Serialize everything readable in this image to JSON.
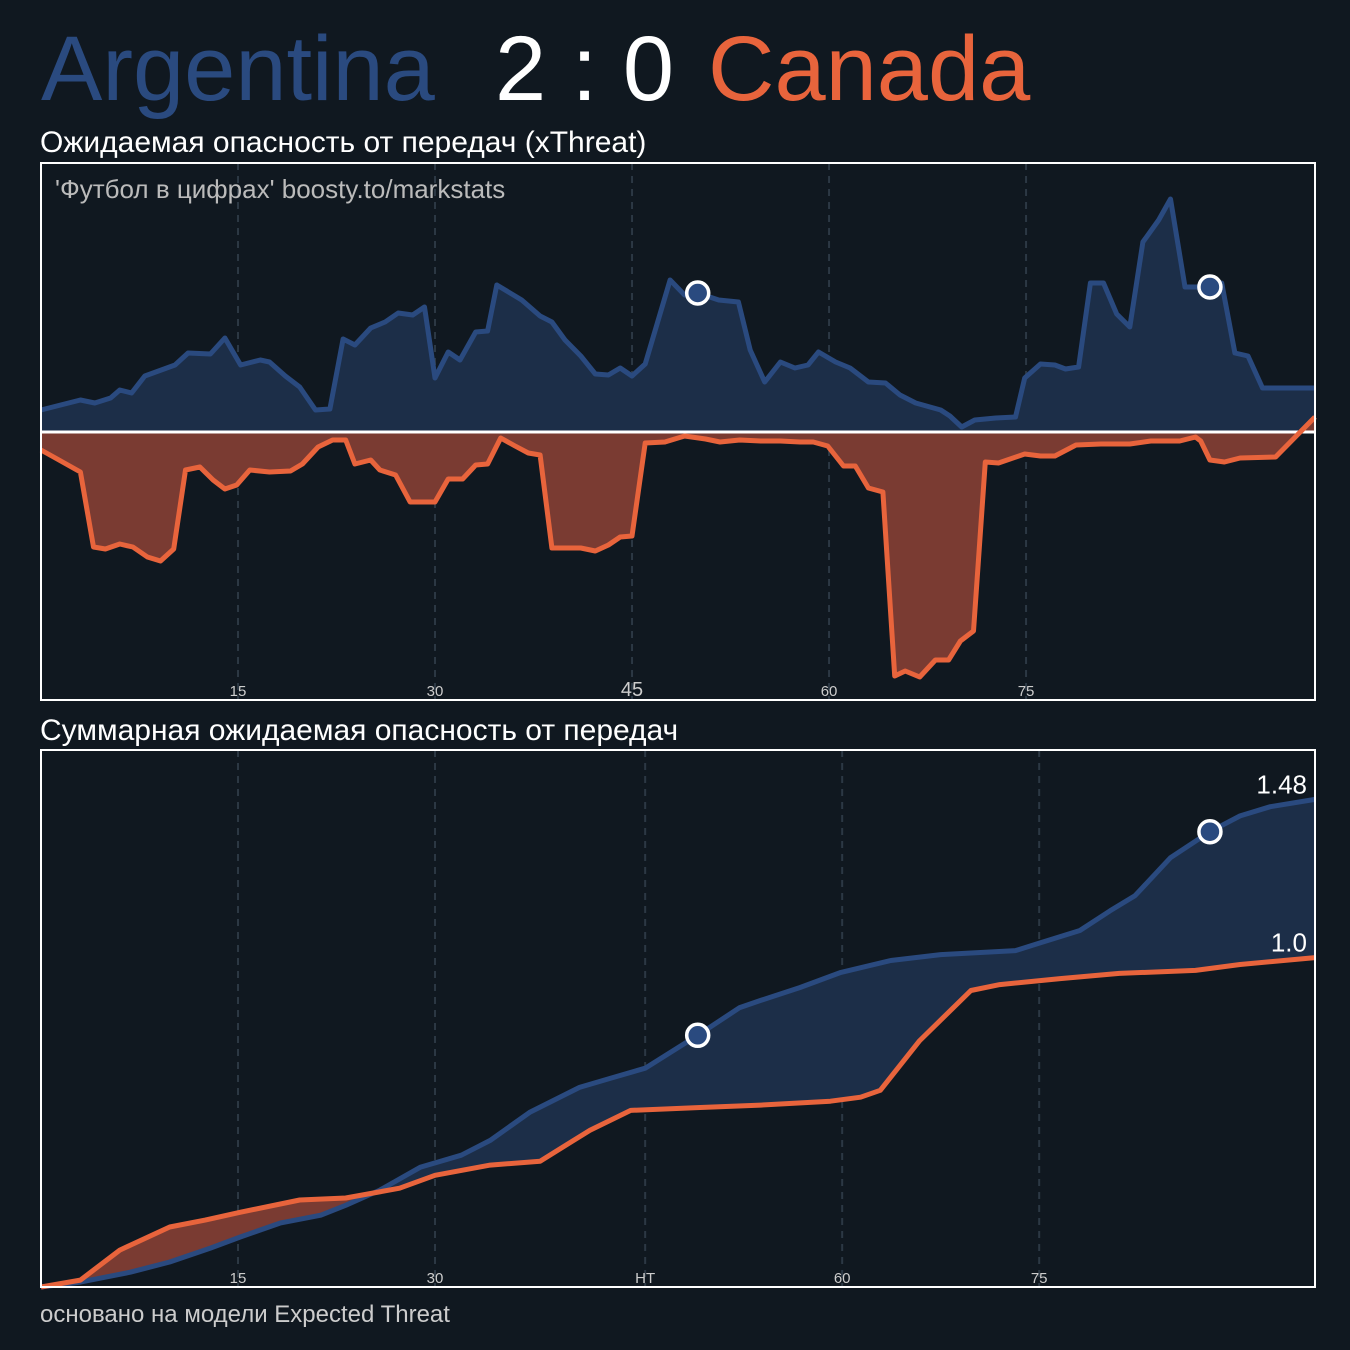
{
  "header": {
    "home": "Argentina",
    "score": "2 : 0",
    "away": "Canada"
  },
  "footer": "основано на модели Expected Threat",
  "chart_data": [
    {
      "type": "area",
      "title": "Ожидаемая опасность от передач (xThreat)",
      "annotation": "'Футбол в цифрах' boosty.to/markstats",
      "xlim": [
        0,
        97
      ],
      "ylim": [
        -0.268,
        0.269
      ],
      "xticks": [
        15,
        30,
        45,
        60,
        75
      ],
      "grid": true,
      "series": [
        {
          "color": "#2a4a7f",
          "fill": "#1c2e48",
          "x": [
            0,
            3.0,
            4.1,
            5.3,
            6.0,
            6.9,
            7.9,
            10.2,
            11.2,
            12.9,
            14.0,
            15.2,
            16.7,
            17.4,
            18.6,
            19.7,
            20.9,
            22.0,
            23.0,
            23.9,
            25.1,
            26.2,
            27.2,
            28.3,
            29.2,
            30.0,
            31.0,
            31.9,
            33.1,
            34.0,
            34.7,
            36.6,
            38.0,
            38.9,
            39.9,
            41.1,
            42.2,
            43.2,
            44.1,
            45.0,
            46.0,
            47.9,
            49.0,
            50.0,
            51.6,
            53.1,
            54.0,
            55.1,
            56.3,
            57.4,
            58.4,
            59.2,
            60.5,
            61.6,
            63.0,
            64.3,
            65.4,
            66.6,
            68.5,
            69.2,
            70.1,
            71.1,
            72.7,
            74.2,
            74.9,
            76.1,
            77.2,
            78.0,
            79.0,
            79.9,
            80.9,
            81.9,
            82.9,
            83.9,
            85.1,
            86.0,
            87.1,
            89.0,
            89.9,
            90.9,
            91.9,
            93.0,
            97.0
          ],
          "values": [
            0.022,
            0.032,
            0.029,
            0.034,
            0.042,
            0.039,
            0.056,
            0.067,
            0.079,
            0.078,
            0.094,
            0.067,
            0.072,
            0.07,
            0.056,
            0.045,
            0.022,
            0.023,
            0.093,
            0.087,
            0.104,
            0.11,
            0.119,
            0.117,
            0.125,
            0.054,
            0.08,
            0.072,
            0.1,
            0.101,
            0.147,
            0.132,
            0.116,
            0.11,
            0.092,
            0.076,
            0.058,
            0.057,
            0.064,
            0.056,
            0.068,
            0.152,
            0.137,
            0.139,
            0.132,
            0.13,
            0.082,
            0.05,
            0.07,
            0.064,
            0.067,
            0.08,
            0.07,
            0.064,
            0.05,
            0.049,
            0.037,
            0.029,
            0.022,
            0.016,
            0.005,
            0.012,
            0.014,
            0.015,
            0.054,
            0.068,
            0.067,
            0.063,
            0.065,
            0.149,
            0.149,
            0.118,
            0.105,
            0.19,
            0.212,
            0.233,
            0.145,
            0.145,
            0.149,
            0.079,
            0.076,
            0.044,
            0.044
          ],
          "goals_x": [
            50,
            89
          ]
        },
        {
          "color": "#e8643c",
          "fill": "#7a3b32",
          "x": [
            0,
            1.1,
            3.0,
            4.0,
            4.9,
            6.0,
            7.0,
            8.1,
            9.1,
            10.1,
            11.0,
            12.1,
            13.1,
            14.0,
            14.9,
            15.9,
            17.4,
            19.0,
            19.9,
            21.1,
            22.2,
            23.2,
            23.9,
            25.1,
            25.8,
            27.0,
            28.1,
            30.0,
            31.0,
            32.1,
            33.1,
            34.0,
            35.0,
            36.1,
            37.1,
            38.0,
            38.9,
            41.1,
            42.2,
            43.2,
            44.1,
            45.0,
            46.0,
            47.5,
            49.0,
            50.6,
            51.7,
            53.2,
            54.8,
            56.3,
            57.8,
            58.8,
            59.9,
            61.1,
            62.0,
            63.0,
            64.1,
            65.0,
            65.8,
            66.9,
            68.1,
            69.1,
            70.0,
            71.0,
            71.9,
            72.9,
            74.9,
            76.1,
            77.2,
            78.8,
            80.7,
            82.9,
            84.5,
            86.7,
            87.9,
            88.3,
            89.0,
            90.1,
            91.3,
            94.0,
            97.0
          ],
          "values": [
            -0.018,
            -0.026,
            -0.04,
            -0.115,
            -0.117,
            -0.112,
            -0.115,
            -0.125,
            -0.129,
            -0.117,
            -0.038,
            -0.035,
            -0.048,
            -0.057,
            -0.053,
            -0.038,
            -0.04,
            -0.039,
            -0.032,
            -0.015,
            -0.008,
            -0.008,
            -0.032,
            -0.028,
            -0.038,
            -0.043,
            -0.07,
            -0.07,
            -0.047,
            -0.047,
            -0.033,
            -0.032,
            -0.006,
            -0.014,
            -0.021,
            -0.023,
            -0.116,
            -0.116,
            -0.119,
            -0.113,
            -0.105,
            -0.104,
            -0.011,
            -0.01,
            -0.004,
            -0.007,
            -0.01,
            -0.008,
            -0.009,
            -0.009,
            -0.01,
            -0.01,
            -0.014,
            -0.034,
            -0.034,
            -0.056,
            -0.06,
            -0.244,
            -0.239,
            -0.245,
            -0.228,
            -0.228,
            -0.209,
            -0.199,
            -0.03,
            -0.031,
            -0.022,
            -0.024,
            -0.024,
            -0.013,
            -0.012,
            -0.012,
            -0.009,
            -0.009,
            -0.005,
            -0.009,
            -0.028,
            -0.03,
            -0.026,
            -0.025,
            0.015
          ]
        }
      ]
    },
    {
      "type": "cumulative",
      "title": "Суммарная ожидаемая опасность от передач",
      "xlim": [
        0,
        97
      ],
      "ylim": [
        0,
        1.63
      ],
      "xticks": [
        15,
        30,
        {
          "value": 46,
          "label": "HT"
        },
        {
          "value": 61,
          "label": "60"
        },
        {
          "value": 76,
          "label": "75"
        }
      ],
      "grid": true,
      "series": [
        {
          "color": "#2a4a7f",
          "fill": "#1c2e48",
          "x": [
            0,
            3.0,
            6.8,
            9.8,
            12.9,
            15.2,
            18.2,
            21.3,
            23.2,
            25.8,
            28.9,
            32.0,
            34.2,
            37.2,
            41.0,
            43.3,
            46.0,
            50.0,
            53.2,
            54.8,
            57.8,
            60.9,
            64.7,
            68.5,
            74.2,
            76.1,
            79.1,
            81.4,
            83.3,
            86.0,
            89.0,
            91.3,
            93.6,
            97.0
          ],
          "values": [
            0,
            0.015,
            0.045,
            0.076,
            0.118,
            0.152,
            0.194,
            0.218,
            0.248,
            0.294,
            0.364,
            0.4,
            0.445,
            0.53,
            0.606,
            0.633,
            0.664,
            0.764,
            0.848,
            0.87,
            0.909,
            0.955,
            0.991,
            1.009,
            1.021,
            1.045,
            1.082,
            1.142,
            1.188,
            1.303,
            1.382,
            1.43,
            1.458,
            1.48
          ],
          "goals_x": [
            50,
            89
          ]
        },
        {
          "color": "#e8643c",
          "fill": "#7a3b32",
          "x": [
            0,
            3.0,
            6.0,
            9.8,
            12.5,
            15.2,
            19.7,
            23.2,
            27.3,
            30.0,
            34.2,
            38.0,
            41.8,
            44.9,
            50.2,
            54.8,
            60.1,
            62.4,
            63.9,
            66.9,
            70.8,
            73.0,
            77.6,
            82.1,
            87.9,
            91.3,
            97.0
          ],
          "values": [
            0,
            0.021,
            0.112,
            0.182,
            0.203,
            0.227,
            0.264,
            0.27,
            0.3,
            0.339,
            0.37,
            0.382,
            0.476,
            0.536,
            0.545,
            0.552,
            0.564,
            0.576,
            0.597,
            0.748,
            0.9,
            0.918,
            0.936,
            0.952,
            0.961,
            0.979,
            1.0
          ],
          "value_labels": {
            "26": "1.0"
          }
        }
      ]
    }
  ]
}
